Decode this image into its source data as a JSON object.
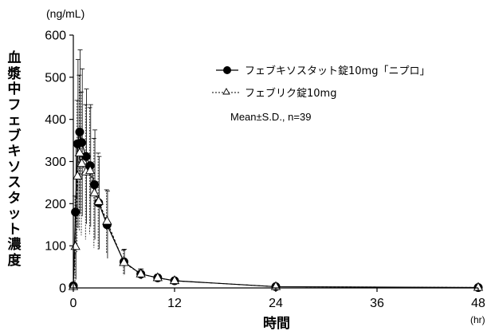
{
  "chart_data": {
    "type": "line",
    "y_unit": "(ng/mL)",
    "x_unit": "(hr)",
    "xlabel": "時間",
    "ylabel": "血漿中フェブキソスタット濃度",
    "xlim": [
      0,
      48
    ],
    "ylim": [
      0,
      600
    ],
    "xticks": [
      0,
      12,
      24,
      36,
      48
    ],
    "yticks": [
      0,
      100,
      200,
      300,
      400,
      500,
      600
    ],
    "note": "Mean±S.D., n=39",
    "legend_position": "top-right",
    "series": [
      {
        "name": "フェブキソスタット錠10mg「ニプロ」",
        "marker": "filled-circle",
        "line": "solid",
        "x": [
          0,
          0.25,
          0.5,
          0.75,
          1,
          1.5,
          2,
          2.5,
          3,
          4,
          6,
          8,
          10,
          12,
          24,
          48
        ],
        "mean": [
          5,
          180,
          342,
          370,
          345,
          312,
          290,
          245,
          202,
          150,
          62,
          33,
          24,
          17,
          3,
          1
        ],
        "sd": [
          5,
          160,
          200,
          195,
          175,
          160,
          145,
          130,
          110,
          80,
          30,
          12,
          8,
          6,
          2,
          1
        ]
      },
      {
        "name": "フェブリク錠10mg",
        "marker": "open-triangle",
        "line": "dashed",
        "x": [
          0,
          0.25,
          0.5,
          0.75,
          1,
          1.5,
          2,
          2.5,
          3,
          4,
          6,
          8,
          10,
          12,
          24,
          48
        ],
        "mean": [
          3,
          98,
          265,
          320,
          295,
          275,
          278,
          225,
          205,
          158,
          60,
          33,
          24,
          17,
          3,
          1
        ],
        "sd": [
          3,
          120,
          180,
          185,
          170,
          160,
          150,
          130,
          115,
          75,
          30,
          12,
          8,
          6,
          2,
          1
        ]
      }
    ]
  }
}
